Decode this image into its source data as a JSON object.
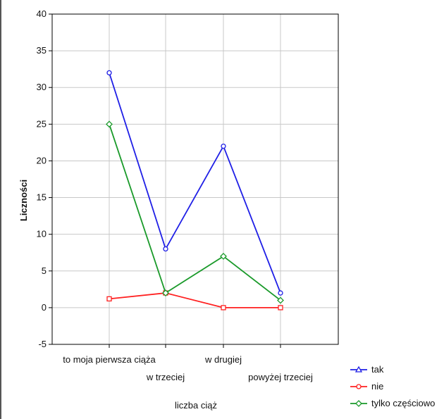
{
  "chart_data": {
    "type": "line",
    "title": "",
    "xlabel": "liczba ciąż",
    "ylabel": "Liczności",
    "ylim": [
      -5,
      40
    ],
    "yticks": [
      -5,
      0,
      5,
      10,
      15,
      20,
      25,
      30,
      35,
      40
    ],
    "grid": true,
    "legend_position": "bottom-right",
    "categories": [
      "to moja pierwsza ciąża",
      "w trzeciej",
      "w drugiej",
      "powyżej trzeciej"
    ],
    "series": [
      {
        "name": "tak",
        "color": "#1f1fe6",
        "marker": "circle",
        "values": [
          32,
          8,
          22,
          2
        ]
      },
      {
        "name": "nie",
        "color": "#ff2020",
        "marker": "square",
        "values": [
          1.2,
          2,
          0,
          0
        ]
      },
      {
        "name": "tylko częściowo",
        "color": "#1a9a2a",
        "marker": "diamond",
        "values": [
          25,
          2,
          7,
          1
        ]
      }
    ]
  }
}
